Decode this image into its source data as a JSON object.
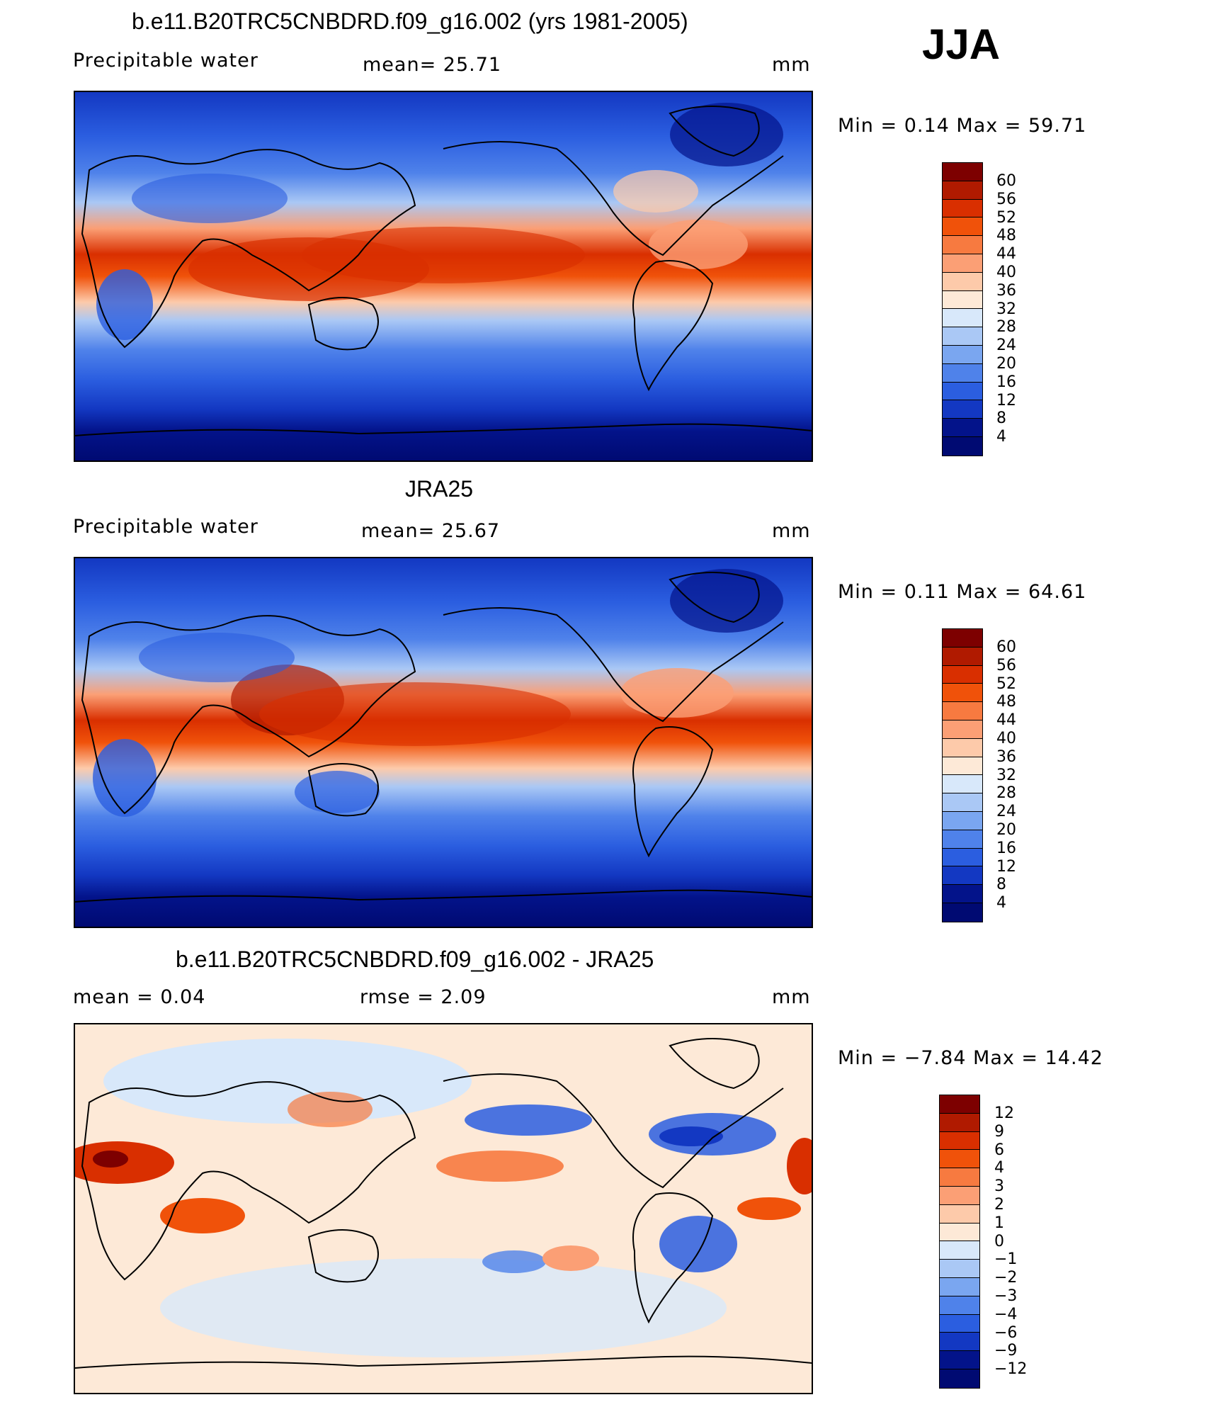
{
  "header": {
    "season": "JJA"
  },
  "panels": [
    {
      "id": "model",
      "title": "b.e11.B20TRC5CNBDRD.f09_g16.002 (yrs 1981-2005)",
      "left_label": "Precipitable  water",
      "center_label": "mean=   25.71",
      "units": "mm",
      "min_text": "Min  =     0.14  Max  =    59.71",
      "colorbar": {
        "labels": [
          "60",
          "56",
          "52",
          "48",
          "44",
          "40",
          "36",
          "32",
          "28",
          "24",
          "20",
          "16",
          "12",
          "8",
          "4"
        ],
        "colors": [
          "#7d0000",
          "#b01a00",
          "#d92f00",
          "#f0520a",
          "#f77a40",
          "#fb9f75",
          "#fdcaaa",
          "#fde9d7",
          "#d8e8fa",
          "#aac8f5",
          "#7aa6f0",
          "#4f82ea",
          "#2b5ee0",
          "#1338c2",
          "#03138a",
          "#000a72"
        ]
      }
    },
    {
      "id": "obs",
      "title": "JRA25",
      "left_label": "Precipitable  water",
      "center_label": "mean=   25.67",
      "units": "mm",
      "min_text": "Min  =     0.11  Max  =    64.61",
      "colorbar": {
        "labels": [
          "60",
          "56",
          "52",
          "48",
          "44",
          "40",
          "36",
          "32",
          "28",
          "24",
          "20",
          "16",
          "12",
          "8",
          "4"
        ],
        "colors": [
          "#7d0000",
          "#b01a00",
          "#d92f00",
          "#f0520a",
          "#f77a40",
          "#fb9f75",
          "#fdcaaa",
          "#fde9d7",
          "#d8e8fa",
          "#aac8f5",
          "#7aa6f0",
          "#4f82ea",
          "#2b5ee0",
          "#1338c2",
          "#03138a",
          "#000a72"
        ]
      }
    },
    {
      "id": "diff",
      "title": "b.e11.B20TRC5CNBDRD.f09_g16.002 - JRA25",
      "left_label": "mean  =     0.04",
      "center_label": "rmse  =     2.09",
      "units": "mm",
      "min_text": "Min  =   −7.84  Max  =    14.42",
      "colorbar": {
        "labels": [
          "12",
          "9",
          "6",
          "4",
          "3",
          "2",
          "1",
          "0",
          "−1",
          "−2",
          "−3",
          "−4",
          "−6",
          "−9",
          "−12"
        ],
        "colors": [
          "#7d0000",
          "#b01a00",
          "#d92f00",
          "#f0520a",
          "#f77a40",
          "#fb9f75",
          "#fdcaaa",
          "#fde9d7",
          "#d8e8fa",
          "#aac8f5",
          "#7aa6f0",
          "#4f82ea",
          "#2b5ee0",
          "#1338c2",
          "#03138a",
          "#000a72"
        ]
      }
    }
  ]
}
